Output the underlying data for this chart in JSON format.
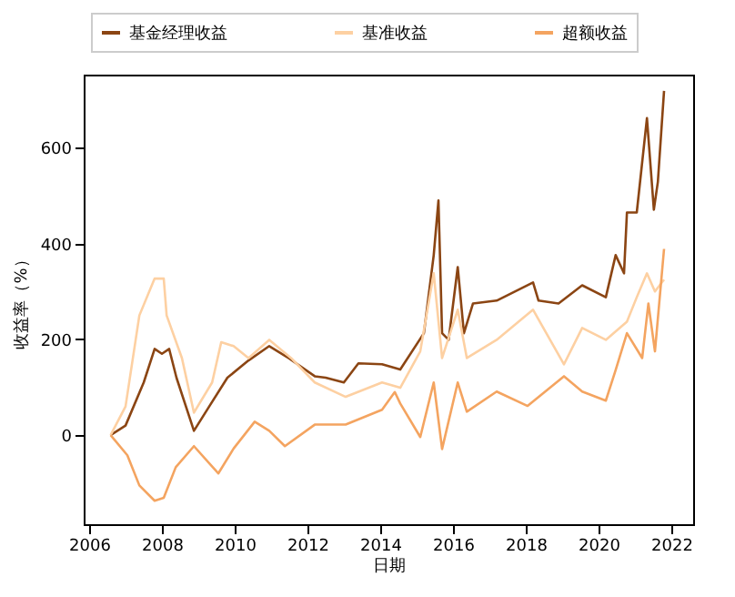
{
  "chart_data": {
    "type": "line",
    "xlabel": "日期",
    "ylabel": "收益率（%）",
    "xlim": [
      2005.85,
      2022.6
    ],
    "xticks": [
      2006,
      2008,
      2010,
      2012,
      2014,
      2016,
      2018,
      2020,
      2022
    ],
    "ylim": [
      -186,
      753
    ],
    "yticks": [
      0,
      200,
      400,
      600
    ],
    "grid": false,
    "legend": "top",
    "series": [
      {
        "name": "基金经理收益",
        "color": "#8b4513",
        "x": [
          2006.59,
          2007.0,
          2007.5,
          2007.8,
          2008.0,
          2008.2,
          2008.4,
          2008.88,
          2009.3,
          2009.8,
          2010.38,
          2010.95,
          2011.5,
          2012.2,
          2012.5,
          2013.0,
          2013.4,
          2014.05,
          2014.55,
          2015.2,
          2015.47,
          2015.6,
          2015.7,
          2015.88,
          2016.13,
          2016.3,
          2016.55,
          2017.2,
          2018.2,
          2018.35,
          2018.9,
          2019.55,
          2020.2,
          2020.47,
          2020.7,
          2020.78,
          2021.05,
          2021.33,
          2021.52,
          2021.63,
          2021.8
        ],
        "values": [
          0,
          20,
          110,
          180,
          170,
          180,
          120,
          9,
          60,
          120,
          156,
          186,
          160,
          123,
          120,
          110,
          150,
          148,
          137,
          213,
          376,
          490,
          213,
          199,
          351,
          213,
          275,
          281,
          319,
          281,
          275,
          313,
          288,
          376,
          338,
          465,
          465,
          662,
          471,
          529,
          719
        ]
      },
      {
        "name": "基准收益",
        "color": "#fdd0a2",
        "x": [
          2006.59,
          2007.0,
          2007.38,
          2007.8,
          2008.05,
          2008.13,
          2008.55,
          2008.88,
          2009.38,
          2009.63,
          2009.97,
          2010.38,
          2010.95,
          2011.55,
          2012.2,
          2013.05,
          2014.05,
          2014.55,
          2015.1,
          2015.47,
          2015.7,
          2016.13,
          2016.38,
          2017.2,
          2018.2,
          2019.05,
          2019.55,
          2020.2,
          2020.78,
          2021.05,
          2021.33,
          2021.55,
          2021.8
        ],
        "values": [
          0,
          60,
          250,
          327,
          327,
          250,
          161,
          47,
          110,
          194,
          186,
          161,
          199,
          161,
          110,
          80,
          110,
          99,
          175,
          338,
          161,
          262,
          161,
          199,
          262,
          148,
          224,
          199,
          237,
          288,
          338,
          300,
          325
        ]
      },
      {
        "name": "超额收益",
        "color": "#f4a460",
        "x": [
          2006.59,
          2007.05,
          2007.38,
          2007.8,
          2008.05,
          2008.38,
          2008.88,
          2009.55,
          2009.97,
          2010.55,
          2010.95,
          2011.38,
          2012.2,
          2013.05,
          2014.05,
          2014.4,
          2014.55,
          2015.1,
          2015.47,
          2015.7,
          2016.13,
          2016.38,
          2017.2,
          2018.05,
          2019.05,
          2019.55,
          2020.2,
          2020.47,
          2020.78,
          2021.2,
          2021.37,
          2021.55,
          2021.8
        ],
        "values": [
          0,
          -42,
          -105,
          -137,
          -131,
          -67,
          -23,
          -80,
          -28,
          28,
          9,
          -23,
          22,
          22,
          53,
          90,
          66,
          -4,
          110,
          -29,
          110,
          49,
          91,
          61,
          123,
          91,
          72,
          136,
          213,
          161,
          275,
          175,
          389
        ]
      }
    ]
  }
}
